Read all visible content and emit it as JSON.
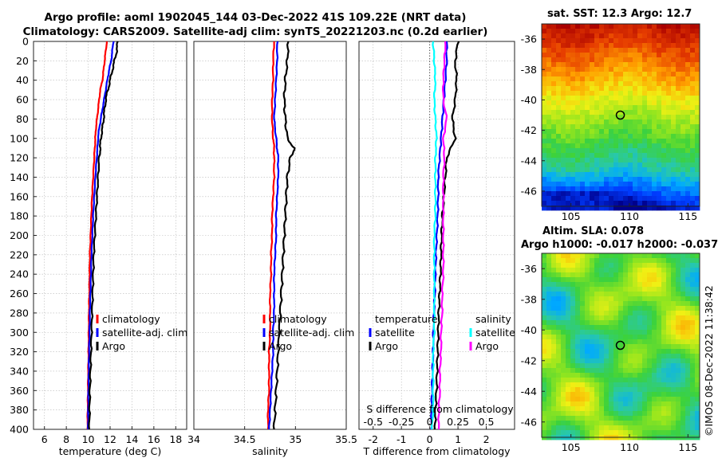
{
  "header": {
    "title_line1": "Argo profile: aoml 1902045_144 03-Dec-2022 41S 109.22E (NRT data)",
    "title_line2": "Climatology: CARS2009. Satellite-adj clim: synTS_20221203.nc (0.2d earlier)"
  },
  "maps": {
    "sst_title": "sat. SST: 12.3 Argo: 12.7",
    "sla_title_line1": "Altim. SLA: 0.078",
    "sla_title_line2": "Argo h1000: -0.017 h2000: -0.037",
    "lat_ticks": [
      "-36",
      "-38",
      "-40",
      "-42",
      "-44",
      "-46"
    ],
    "lon_ticks": [
      "105",
      "110",
      "115"
    ],
    "argo_position": {
      "lon": 109.22,
      "lat": -41.0
    }
  },
  "stamp": "©IMOS 08-Dec-2022 11:38:42",
  "colors": {
    "climatology": "#ff0000",
    "satellite": "#0000ff",
    "argo": "#000000",
    "salinity_sat": "#00ffff",
    "salinity_argo": "#ff00ff",
    "zero_line": "#555555"
  },
  "chart_data": [
    {
      "type": "line",
      "panel": "temperature",
      "xlabel": "temperature (deg C)",
      "ylabel": "",
      "xlim": [
        5,
        19
      ],
      "ylim": [
        0,
        400
      ],
      "xticks": [
        6,
        8,
        10,
        12,
        14,
        16,
        18
      ],
      "yticks": [
        0,
        20,
        40,
        60,
        80,
        100,
        120,
        140,
        160,
        180,
        200,
        220,
        240,
        260,
        280,
        300,
        320,
        340,
        360,
        380,
        400
      ],
      "grid": true,
      "legend_position": "lower-center",
      "depth": [
        0,
        10,
        20,
        30,
        40,
        50,
        60,
        70,
        80,
        90,
        100,
        110,
        120,
        140,
        160,
        180,
        200,
        220,
        240,
        260,
        280,
        300,
        320,
        340,
        360,
        380,
        400
      ],
      "series": [
        {
          "name": "climatology",
          "color": "#ff0000",
          "values": [
            11.7,
            11.6,
            11.5,
            11.4,
            11.3,
            11.1,
            11.0,
            10.9,
            10.8,
            10.7,
            10.65,
            10.6,
            10.55,
            10.45,
            10.35,
            10.28,
            10.22,
            10.15,
            10.12,
            10.1,
            10.07,
            10.05,
            10.03,
            10.0,
            9.98,
            9.95,
            9.93
          ]
        },
        {
          "name": "satellite-adj. clim",
          "color": "#0000ff",
          "values": [
            12.3,
            12.2,
            12.1,
            11.9,
            11.75,
            11.6,
            11.45,
            11.3,
            11.15,
            11.0,
            10.9,
            10.85,
            10.78,
            10.65,
            10.55,
            10.45,
            10.38,
            10.3,
            10.25,
            10.2,
            10.15,
            10.12,
            10.08,
            10.05,
            10.02,
            10.0,
            9.98
          ]
        },
        {
          "name": "Argo",
          "color": "#000000",
          "values": [
            12.7,
            12.6,
            12.4,
            12.2,
            12.0,
            11.8,
            11.6,
            11.5,
            11.4,
            11.3,
            11.15,
            11.1,
            11.0,
            10.9,
            10.8,
            10.7,
            10.6,
            10.5,
            10.45,
            10.4,
            10.35,
            10.3,
            10.25,
            10.2,
            10.15,
            10.12,
            10.1
          ]
        }
      ]
    },
    {
      "type": "line",
      "panel": "salinity",
      "xlabel": "salinity",
      "xlim": [
        34,
        35.5
      ],
      "xticks": [
        34,
        34.5,
        35,
        35.5
      ],
      "xticklabels": [
        "34",
        "34.5",
        "35",
        "35.5"
      ],
      "ylim": [
        0,
        400
      ],
      "grid": true,
      "depth": [
        0,
        20,
        40,
        60,
        80,
        100,
        110,
        120,
        140,
        160,
        180,
        200,
        220,
        240,
        260,
        280,
        300,
        320,
        340,
        360,
        380,
        400
      ],
      "series": [
        {
          "name": "climatology",
          "color": "#ff0000",
          "values": [
            34.79,
            34.78,
            34.78,
            34.77,
            34.77,
            34.78,
            34.79,
            34.79,
            34.79,
            34.78,
            34.77,
            34.77,
            34.76,
            34.76,
            34.75,
            34.75,
            34.75,
            34.74,
            34.74,
            34.74,
            34.73,
            34.73
          ]
        },
        {
          "name": "satellite-adj. clim",
          "color": "#0000ff",
          "values": [
            34.82,
            34.82,
            34.81,
            34.8,
            34.79,
            34.81,
            34.82,
            34.83,
            34.83,
            34.82,
            34.81,
            34.81,
            34.8,
            34.79,
            34.79,
            34.79,
            34.78,
            34.78,
            34.77,
            34.76,
            34.75,
            34.74
          ]
        },
        {
          "name": "Argo",
          "color": "#000000",
          "values": [
            34.93,
            34.92,
            34.9,
            34.89,
            34.9,
            34.92,
            34.99,
            34.95,
            34.92,
            34.91,
            34.9,
            34.89,
            34.88,
            34.87,
            34.86,
            34.85,
            34.84,
            34.83,
            34.82,
            34.81,
            34.8,
            34.79
          ]
        }
      ]
    },
    {
      "type": "line",
      "panel": "difference",
      "xlabel": "T difference from climatology",
      "top_xlabel": "S difference from climatology",
      "xlim": [
        -2.5,
        3
      ],
      "xticks": [
        -2,
        -1,
        0,
        1,
        2
      ],
      "s_xlim": [
        -0.625,
        0.75
      ],
      "s_xticks": [
        -0.5,
        -0.25,
        0,
        0.25,
        0.5
      ],
      "s_xticklabels": [
        "-0.5",
        "-0.25",
        "0",
        "0.25",
        "0.5"
      ],
      "ylim": [
        0,
        400
      ],
      "grid": true,
      "legend_headers": [
        "temperature",
        "salinity"
      ],
      "depth": [
        0,
        20,
        40,
        60,
        80,
        100,
        120,
        140,
        160,
        180,
        200,
        220,
        240,
        260,
        280,
        300,
        320,
        340,
        360,
        380,
        400
      ],
      "series": [
        {
          "name": "satellite",
          "quantity": "temperature",
          "color": "#0000ff",
          "values": [
            0.6,
            0.6,
            0.55,
            0.5,
            0.45,
            0.4,
            0.35,
            0.3,
            0.3,
            0.28,
            0.25,
            0.22,
            0.2,
            0.18,
            0.15,
            0.13,
            0.12,
            0.1,
            0.08,
            0.07,
            0.05
          ]
        },
        {
          "name": "Argo",
          "quantity": "temperature",
          "color": "#000000",
          "values": [
            1.0,
            0.9,
            0.95,
            0.9,
            0.8,
            0.9,
            0.6,
            0.55,
            0.5,
            0.45,
            0.42,
            0.4,
            0.38,
            0.35,
            0.32,
            0.3,
            0.28,
            0.26,
            0.24,
            0.2,
            0.18
          ]
        },
        {
          "name": "satellite",
          "quantity": "salinity",
          "color": "#00ffff",
          "values": [
            0.03,
            0.04,
            0.05,
            0.04,
            0.05,
            0.06,
            0.05,
            0.05,
            0.05,
            0.05,
            0.04,
            0.04,
            0.04,
            0.04,
            0.04,
            0.04,
            0.03,
            0.03,
            0.03,
            0.03,
            0.02
          ]
        },
        {
          "name": "Argo",
          "quantity": "salinity",
          "color": "#ff00ff",
          "values": [
            0.14,
            0.13,
            0.12,
            0.12,
            0.15,
            0.12,
            0.13,
            0.12,
            0.12,
            0.12,
            0.12,
            0.12,
            0.12,
            0.11,
            0.11,
            0.1,
            0.1,
            0.09,
            0.09,
            0.08,
            0.08
          ]
        }
      ]
    }
  ]
}
